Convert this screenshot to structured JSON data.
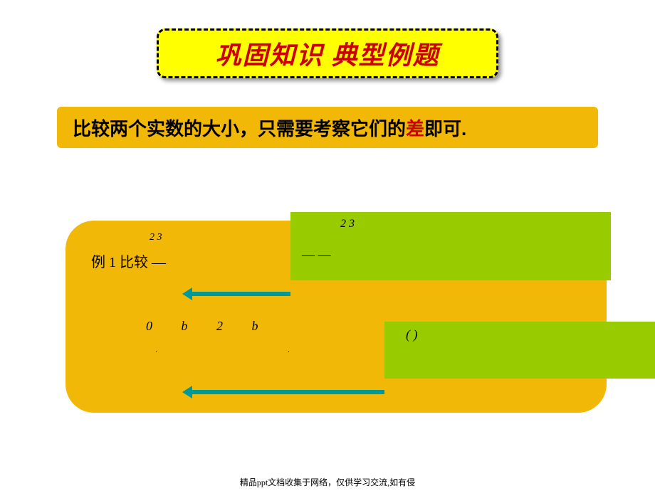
{
  "colors": {
    "banner_bg": "#ffff00",
    "banner_border": "#000000",
    "banner_text": "#cc0000",
    "panel_bg": "#f2b807",
    "green_overlay": "#99cc00",
    "arrow": "#009999",
    "highlight": "#cc0000",
    "background": "#ffffff"
  },
  "title": {
    "text": "巩固知识  典型例题",
    "fontsize": 36,
    "weight": "bold",
    "style": "italic"
  },
  "subtitle": {
    "prefix": "比较两个实数的大小，只需要考察它们的",
    "highlight": "差",
    "suffix": "即可.",
    "fontsize": 26
  },
  "example": {
    "label": "例 1  比较 —",
    "frac_hint": "2        3",
    "math_row": "0    b          2         b",
    "small_hints": "·                    ·",
    "green1_top": "2      3",
    "green1_mid": "—   —",
    "green2_text": "(                                )"
  },
  "footer": {
    "text": "精品ppt文档收集于网络，仅供学习交流,如有侵"
  }
}
